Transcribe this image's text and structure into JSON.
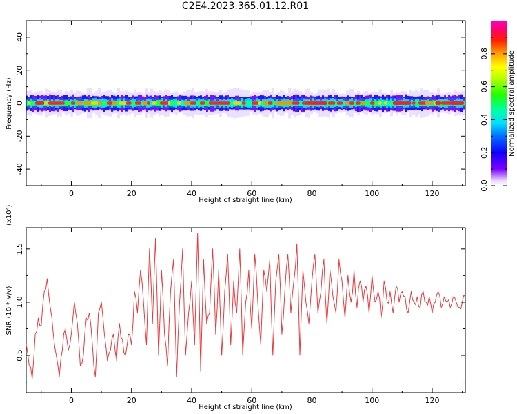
{
  "title": "C2E4.2023.365.01.12.R01",
  "chart_data": [
    {
      "type": "heatmap",
      "xlabel": "Height of straight line (km)",
      "ylabel": "Frequency (Hz)",
      "xlim": [
        -15,
        131
      ],
      "ylim": [
        -50,
        50
      ],
      "xticks": [
        "0",
        "20",
        "40",
        "60",
        "80",
        "100",
        "120"
      ],
      "yticks": [
        "-40",
        "-20",
        "0",
        "20",
        "40"
      ],
      "band_center_hz": 0,
      "band_halfwidth_hz": 4,
      "colorbar": {
        "label": "Normalized spectral amplitude",
        "range": [
          0.0,
          1.0
        ],
        "ticks": [
          "0.0",
          "0.2",
          "0.4",
          "0.6",
          "0.8"
        ]
      }
    },
    {
      "type": "line",
      "xlabel": "Height of straight line (km)",
      "ylabel": "SNR (10 * v/v)",
      "multiplier": "(x10⁴)",
      "xlim": [
        -15,
        131
      ],
      "ylim": [
        0.15,
        1.7
      ],
      "xticks": [
        "0",
        "20",
        "40",
        "60",
        "80",
        "100",
        "120"
      ],
      "yticks": [
        "0.5",
        "1.0",
        "1.5"
      ],
      "line_color": "#e83a3a",
      "series": [
        {
          "x": [
            -15,
            -14,
            -13,
            -12,
            -11,
            -10,
            -9,
            -8,
            -7,
            -6,
            -5,
            -4,
            -3,
            -2,
            -1,
            0,
            1,
            2,
            3,
            4,
            5,
            6,
            7,
            8,
            9,
            10,
            11,
            12,
            13,
            14,
            15,
            16,
            17,
            18,
            19,
            20,
            21,
            22,
            23,
            24,
            25,
            26,
            27,
            28,
            29,
            30,
            31,
            32,
            33,
            34,
            35,
            36,
            37,
            38,
            39,
            40,
            41,
            42,
            43,
            44,
            45,
            46,
            47,
            48,
            49,
            50,
            51,
            52,
            53,
            54,
            55,
            56,
            57,
            58,
            59,
            60,
            61,
            62,
            63,
            64,
            65,
            66,
            67,
            68,
            69,
            70,
            71,
            72,
            73,
            74,
            75,
            76,
            77,
            78,
            79,
            80,
            81,
            82,
            83,
            84,
            85,
            86,
            87,
            88,
            89,
            90,
            91,
            92,
            93,
            94,
            95,
            96,
            97,
            98,
            99,
            100,
            101,
            102,
            103,
            104,
            105,
            106,
            107,
            108,
            109,
            110,
            111,
            112,
            113,
            114,
            115,
            116,
            117,
            118,
            119,
            120,
            121,
            122,
            123,
            124,
            125,
            126,
            127,
            128,
            129,
            130,
            131
          ],
          "values": [
            0.6,
            0.4,
            0.28,
            0.7,
            0.85,
            0.78,
            1.1,
            1.22,
            0.95,
            0.7,
            0.5,
            0.3,
            0.55,
            0.75,
            0.55,
            0.7,
            1.0,
            0.8,
            0.4,
            0.5,
            0.85,
            0.9,
            0.6,
            0.3,
            0.9,
            1.0,
            0.7,
            0.45,
            0.55,
            0.7,
            0.45,
            0.8,
            0.65,
            0.5,
            0.7,
            0.6,
            1.1,
            0.9,
            1.3,
            1.0,
            0.6,
            1.5,
            0.8,
            1.6,
            0.5,
            1.3,
            0.7,
            0.4,
            1.1,
            1.4,
            0.3,
            1.0,
            1.5,
            0.5,
            0.9,
            1.2,
            0.6,
            1.65,
            0.35,
            1.4,
            0.8,
            0.9,
            1.5,
            0.7,
            1.3,
            0.5,
            1.1,
            1.45,
            0.6,
            1.2,
            0.9,
            1.5,
            0.5,
            1.0,
            1.3,
            0.75,
            1.45,
            1.0,
            0.6,
            1.3,
            1.1,
            1.4,
            0.5,
            1.2,
            1.45,
            0.7,
            1.1,
            1.45,
            0.9,
            1.2,
            1.55,
            0.5,
            1.3,
            1.0,
            0.8,
            1.2,
            1.45,
            0.9,
            1.1,
            1.4,
            0.8,
            1.3,
            1.05,
            0.9,
            1.4,
            1.2,
            0.85,
            1.25,
            1.0,
            1.3,
            0.95,
            1.2,
            1.0,
            1.15,
            0.9,
            1.25,
            1.0,
            1.1,
            0.85,
            1.2,
            1.0,
            1.1,
            0.9,
            1.15,
            1.0,
            1.1,
            1.05,
            0.9,
            1.1,
            1.0,
            1.05,
            0.95,
            1.1,
            1.0,
            1.05,
            0.9,
            1.0,
            1.1,
            0.95,
            1.05,
            1.0,
            0.95,
            1.05,
            1.0,
            0.95,
            1.0,
            1.05
          ]
        }
      ]
    }
  ]
}
